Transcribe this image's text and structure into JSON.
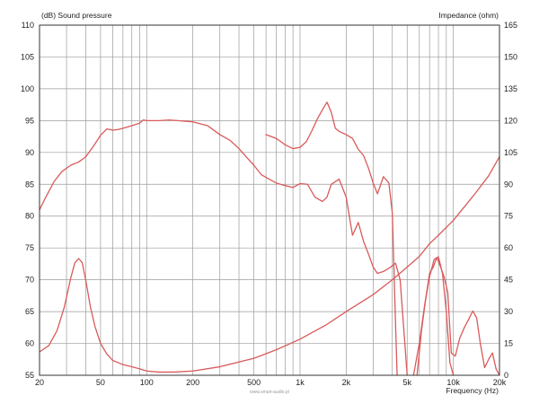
{
  "chart_data": {
    "type": "line",
    "title": "",
    "ylabel_left": "(dB)  Sound pressure",
    "ylabel_right": "Impedance  (ohm)",
    "xlabel": "Frequency  (Hz)",
    "x_scale": "log",
    "xlim": [
      20,
      20000
    ],
    "ylim_left": [
      55,
      110
    ],
    "ylim_right": [
      0,
      165
    ],
    "grid": true,
    "legend": "none",
    "x_tick_labels": [
      {
        "value": 20,
        "label": "20"
      },
      {
        "value": 50,
        "label": "50"
      },
      {
        "value": 100,
        "label": "100"
      },
      {
        "value": 200,
        "label": "200"
      },
      {
        "value": 500,
        "label": "500"
      },
      {
        "value": 1000,
        "label": "1k"
      },
      {
        "value": 2000,
        "label": "2k"
      },
      {
        "value": 5000,
        "label": "5k"
      },
      {
        "value": 10000,
        "label": "10k"
      },
      {
        "value": 20000,
        "label": "20k"
      }
    ],
    "y_left_ticks": [
      "55",
      "60",
      "65",
      "70",
      "75",
      "80",
      "85",
      "90",
      "95",
      "100",
      "105",
      "110"
    ],
    "y_right_ticks": [
      "0",
      "15",
      "30",
      "45",
      "60",
      "75",
      "90",
      "105",
      "120",
      "135",
      "150",
      "165"
    ],
    "colors": {
      "curve": "#d95a5a",
      "grid": "#9b9b9b",
      "frame": "#333333"
    },
    "series": [
      {
        "axis": "left",
        "x": [
          20,
          22,
          25,
          28,
          32,
          36,
          40,
          45,
          50,
          55,
          60,
          65,
          70,
          80,
          90,
          95,
          100,
          120,
          140,
          160,
          180,
          200,
          250,
          300,
          350,
          400,
          450,
          500,
          560,
          630,
          700,
          800,
          900,
          1000,
          1120,
          1250,
          1400,
          1500,
          1600,
          1800,
          2000,
          2200,
          2400,
          2600,
          2800,
          3000,
          3200,
          3500,
          3800,
          4200,
          4500,
          5000
        ],
        "y": [
          81,
          83,
          85.5,
          87,
          88,
          88.5,
          89.3,
          91,
          92.7,
          93.7,
          93.5,
          93.6,
          93.8,
          94.2,
          94.6,
          95.1,
          95,
          95,
          95.1,
          95,
          94.9,
          94.8,
          94.2,
          92.8,
          91.9,
          90.6,
          89.2,
          88,
          86.5,
          85.8,
          85.2,
          84.8,
          84.5,
          85.1,
          85,
          83,
          82.3,
          83,
          85,
          85.8,
          83,
          77,
          79,
          76,
          74,
          72,
          71,
          71.3,
          71.8,
          72.6,
          70,
          53
        ]
      },
      {
        "axis": "left",
        "x": [
          600,
          650,
          700,
          750,
          800,
          900,
          1000,
          1100,
          1200,
          1300,
          1400,
          1500,
          1600,
          1700,
          1800,
          2000,
          2200,
          2400,
          2600,
          2800,
          3000,
          3200,
          3500,
          3800,
          4000,
          4200,
          4300
        ],
        "y": [
          92.8,
          92.5,
          92.2,
          91.7,
          91.2,
          90.6,
          90.8,
          91.7,
          93.5,
          95.3,
          96.7,
          97.9,
          96.3,
          93.8,
          93.3,
          92.8,
          92.2,
          90.5,
          89.5,
          87.5,
          85.2,
          83.5,
          86.2,
          85.2,
          80.5,
          63,
          53
        ]
      },
      {
        "axis": "left",
        "x": [
          5800,
          6200,
          6600,
          7000,
          7400,
          7800,
          8200,
          8700,
          9200,
          9700,
          10300,
          11000,
          11800,
          12600,
          13400,
          14200,
          15000,
          16000,
          17000,
          18000,
          19000,
          20000
        ],
        "y": [
          55,
          62,
          67,
          71,
          72,
          73.5,
          72.2,
          70.5,
          68,
          58.5,
          58,
          60.8,
          62.5,
          63.8,
          65.1,
          64,
          60,
          56.2,
          57.5,
          58.5,
          56,
          55
        ]
      },
      {
        "axis": "left",
        "x": [
          5500,
          6000,
          6500,
          7000,
          7500,
          8000,
          8500,
          9000,
          9500,
          10000
        ],
        "y": [
          53,
          60,
          66,
          70.5,
          73.2,
          73.6,
          71,
          65,
          57,
          54
        ]
      },
      {
        "axis": "right",
        "x": [
          20,
          23,
          26,
          29,
          32,
          34,
          36,
          38,
          40,
          43,
          46,
          50,
          55,
          60,
          70,
          80,
          90,
          100,
          120,
          150,
          200,
          300,
          500,
          700,
          1000,
          1500,
          2000,
          3000,
          4000,
          5000,
          6000,
          7000,
          8000,
          10000,
          12000,
          14000,
          17000,
          20000
        ],
        "y": [
          11,
          14,
          21,
          32,
          46,
          53,
          55,
          53,
          45,
          32,
          23,
          15,
          10,
          7,
          5,
          4,
          3,
          2,
          1.5,
          1.5,
          2,
          4,
          8,
          12,
          17,
          24,
          30,
          38,
          45,
          51,
          56,
          62,
          66,
          73,
          80,
          86,
          94,
          103
        ]
      }
    ]
  },
  "footer": {
    "watermark": "www.smart-audio.pl"
  }
}
